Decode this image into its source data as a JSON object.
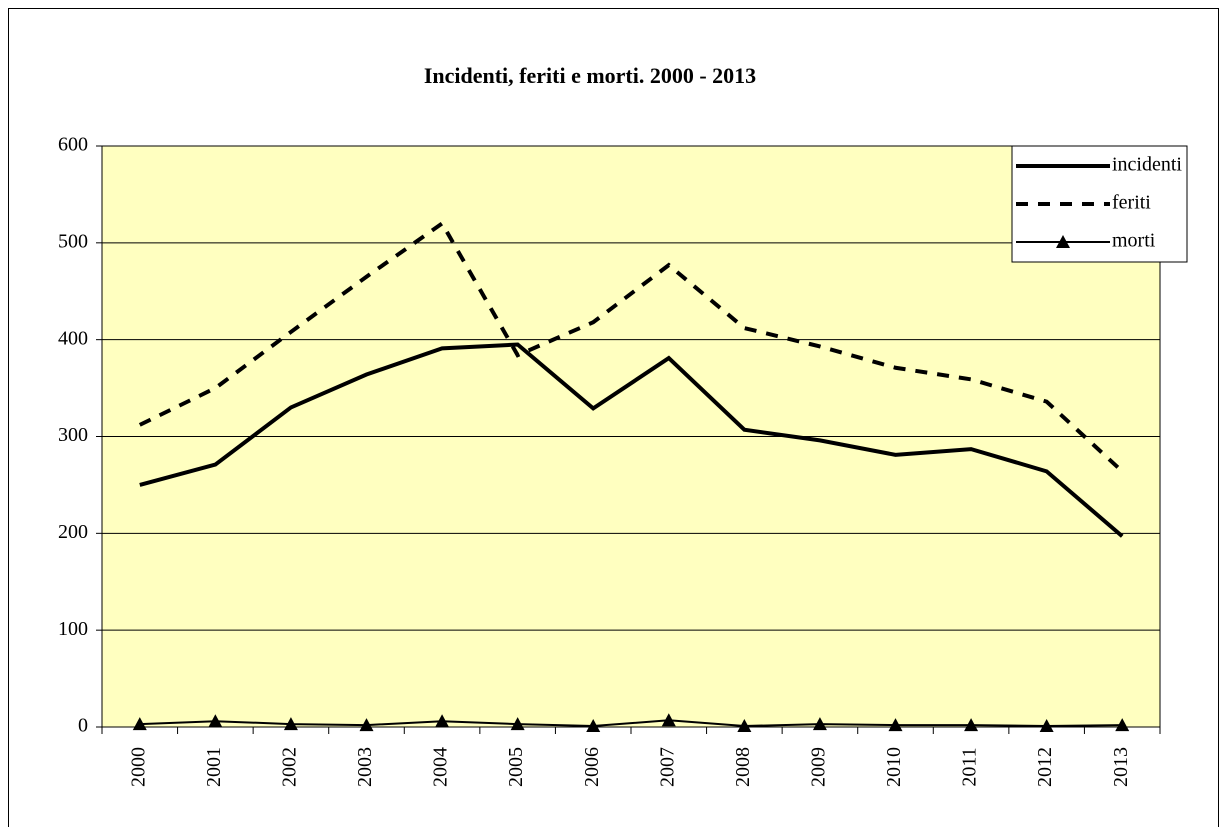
{
  "chart_data": {
    "type": "line",
    "title": "Incidenti, feriti e morti. 2000 - 2013",
    "categories": [
      "2000",
      "2001",
      "2002",
      "2003",
      "2004",
      "2005",
      "2006",
      "2007",
      "2008",
      "2009",
      "2010",
      "2011",
      "2012",
      "2013"
    ],
    "series": [
      {
        "name": "incidenti",
        "color": "#000000",
        "style": "solid",
        "values": [
          250,
          271,
          330,
          364,
          391,
          395,
          329,
          381,
          307,
          296,
          281,
          287,
          264,
          197
        ]
      },
      {
        "name": "feriti",
        "color": "#000000",
        "style": "dashed",
        "values": [
          312,
          350,
          408,
          465,
          520,
          384,
          418,
          477,
          412,
          393,
          371,
          359,
          336,
          264
        ]
      },
      {
        "name": "morti",
        "color": "#000000",
        "style": "triangle",
        "values": [
          3,
          6,
          3,
          2,
          6,
          3,
          1,
          7,
          1,
          3,
          2,
          2,
          1,
          2
        ]
      }
    ],
    "ylim": [
      0,
      600
    ],
    "yticks": [
      0,
      100,
      200,
      300,
      400,
      500,
      600
    ],
    "grid": true,
    "legend": "top-right",
    "background": "#ffffc0"
  }
}
